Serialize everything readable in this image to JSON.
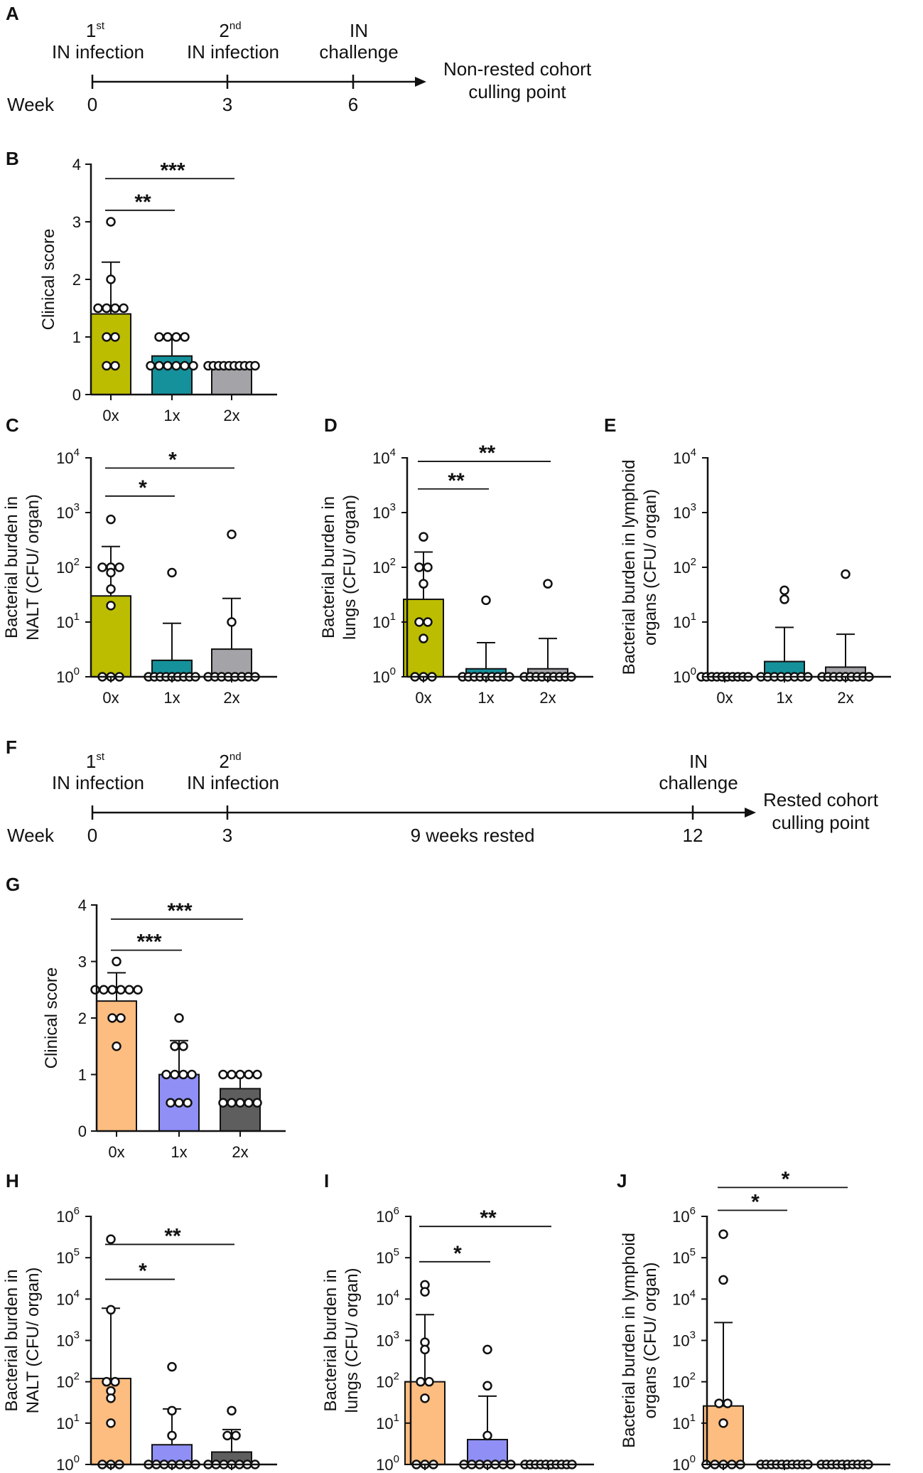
{
  "colors": {
    "olive": "#bcbd00",
    "teal": "#14919b",
    "gray": "#a3a3a8",
    "orange": "#fdbd80",
    "lavender": "#8f8ff5",
    "dark": "#5e5e5e"
  },
  "timelines": [
    {
      "panel": "A",
      "week_label": "Week",
      "events": [
        {
          "num": "1",
          "sup": "st",
          "label": "IN infection",
          "week": "0"
        },
        {
          "num": "2",
          "sup": "nd",
          "label": "IN infection",
          "week": "3"
        },
        {
          "num": "",
          "sup": "",
          "label": "IN",
          "label2": "challenge",
          "week": "6"
        }
      ],
      "end_label": [
        "Non-rested cohort",
        "culling point"
      ]
    },
    {
      "panel": "F",
      "week_label": "Week",
      "events": [
        {
          "num": "1",
          "sup": "st",
          "label": "IN infection",
          "week": "0"
        },
        {
          "num": "2",
          "sup": "nd",
          "label": "IN infection",
          "week": "3"
        },
        {
          "num": "",
          "sup": "",
          "label": "IN",
          "label2": "challenge",
          "week": "12"
        }
      ],
      "mid_label": "9 weeks rested",
      "end_label": [
        "Rested cohort",
        "culling point"
      ]
    }
  ],
  "chart_data": [
    {
      "panel": "B",
      "type": "bar",
      "scale": "linear",
      "ylabel": [
        "Clinical score"
      ],
      "ylim": [
        0,
        4
      ],
      "yticks": [
        "0",
        "1",
        "2",
        "3",
        "4"
      ],
      "categories": [
        "0x",
        "1x",
        "2x"
      ],
      "values": [
        1.4,
        0.67,
        0.5
      ],
      "errors": [
        2.3,
        1.0,
        0.5
      ],
      "colors": [
        "olive",
        "teal",
        "gray"
      ],
      "points": [
        [
          3,
          2,
          1.5,
          1.5,
          1.5,
          1.5,
          1,
          1,
          0.5,
          0.5
        ],
        [
          1,
          1,
          1,
          1,
          0.5,
          0.5,
          0.5,
          0.5,
          0.5,
          0.5
        ],
        [
          0.5,
          0.5,
          0.5,
          0.5,
          0.5,
          0.5,
          0.5,
          0.5,
          0.5,
          0.5
        ]
      ],
      "brackets": [
        {
          "from": 0,
          "to": 1,
          "y": 3.2,
          "label": "**"
        },
        {
          "from": 0,
          "to": 2,
          "y": 3.75,
          "label": "***"
        }
      ]
    },
    {
      "panel": "C",
      "type": "bar",
      "scale": "log",
      "ylabel": [
        "Bacterial burden in",
        "NALT (CFU/ organ)"
      ],
      "ylim_exp": [
        0,
        4
      ],
      "yticks": [
        {
          "base": "10",
          "exp": "0"
        },
        {
          "base": "10",
          "exp": "1"
        },
        {
          "base": "10",
          "exp": "2"
        },
        {
          "base": "10",
          "exp": "3"
        },
        {
          "base": "10",
          "exp": "4"
        }
      ],
      "categories": [
        "0x",
        "1x",
        "2x"
      ],
      "values": [
        30,
        2,
        3.2
      ],
      "errors": [
        240,
        9.5,
        27
      ],
      "colors": [
        "olive",
        "teal",
        "gray"
      ],
      "points": [
        [
          750,
          100,
          100,
          100,
          80,
          40,
          20,
          1,
          1,
          1
        ],
        [
          80,
          1,
          1,
          1,
          1,
          1,
          1,
          1,
          1,
          1
        ],
        [
          400,
          10,
          1,
          1,
          1,
          1,
          1,
          1,
          1,
          1
        ]
      ],
      "brackets": [
        {
          "from": 0,
          "to": 1,
          "y": 2000,
          "label": "*"
        },
        {
          "from": 0,
          "to": 2,
          "y": 6500,
          "label": "*"
        }
      ]
    },
    {
      "panel": "D",
      "type": "bar",
      "scale": "log",
      "ylabel": [
        "Bacterial burden in",
        "lungs (CFU/ organ)"
      ],
      "ylim_exp": [
        0,
        4
      ],
      "yticks": [
        {
          "base": "10",
          "exp": "0"
        },
        {
          "base": "10",
          "exp": "1"
        },
        {
          "base": "10",
          "exp": "2"
        },
        {
          "base": "10",
          "exp": "3"
        },
        {
          "base": "10",
          "exp": "4"
        }
      ],
      "categories": [
        "0x",
        "1x",
        "2x"
      ],
      "values": [
        26,
        1.4,
        1.4
      ],
      "errors": [
        190,
        4.2,
        5
      ],
      "colors": [
        "olive",
        "teal",
        "gray"
      ],
      "points": [
        [
          360,
          100,
          100,
          50,
          10,
          10,
          5,
          1,
          1,
          1
        ],
        [
          25,
          1,
          1,
          1,
          1,
          1,
          1,
          1,
          1,
          1
        ],
        [
          50,
          1,
          1,
          1,
          1,
          1,
          1,
          1,
          1,
          1
        ]
      ],
      "brackets": [
        {
          "from": 0,
          "to": 1,
          "y": 2700,
          "label": "**"
        },
        {
          "from": 0,
          "to": 2,
          "y": 8600,
          "label": "**"
        }
      ]
    },
    {
      "panel": "E",
      "type": "bar",
      "scale": "log",
      "ylabel": [
        "Bacterial burden in lymphoid",
        "organs (CFU/ organ)"
      ],
      "ylim_exp": [
        0,
        4
      ],
      "yticks": [
        {
          "base": "10",
          "exp": "0"
        },
        {
          "base": "10",
          "exp": "1"
        },
        {
          "base": "10",
          "exp": "2"
        },
        {
          "base": "10",
          "exp": "3"
        },
        {
          "base": "10",
          "exp": "4"
        }
      ],
      "categories": [
        "0x",
        "1x",
        "2x"
      ],
      "values": [
        1,
        1.9,
        1.5
      ],
      "errors": [
        1,
        8,
        6
      ],
      "colors": [
        "olive",
        "teal",
        "gray"
      ],
      "points": [
        [
          1,
          1,
          1,
          1,
          1,
          1,
          1,
          1,
          1,
          1
        ],
        [
          38,
          26,
          1,
          1,
          1,
          1,
          1,
          1,
          1,
          1
        ],
        [
          75,
          1,
          1,
          1,
          1,
          1,
          1,
          1,
          1,
          1
        ]
      ],
      "brackets": []
    },
    {
      "panel": "G",
      "type": "bar",
      "scale": "linear",
      "ylabel": [
        "Clinical score"
      ],
      "ylim": [
        0,
        4
      ],
      "yticks": [
        "0",
        "1",
        "2",
        "3",
        "4"
      ],
      "categories": [
        "0x",
        "1x",
        "2x"
      ],
      "values": [
        2.3,
        1.0,
        0.75
      ],
      "errors": [
        2.8,
        1.6,
        1.0
      ],
      "colors": [
        "orange",
        "lavender",
        "dark"
      ],
      "points": [
        [
          3,
          2.5,
          2.5,
          2.5,
          2.5,
          2.5,
          2.5,
          2,
          2,
          1.5
        ],
        [
          2,
          1.5,
          1.5,
          1,
          1,
          1,
          1,
          0.5,
          0.5,
          0.5
        ],
        [
          1,
          1,
          1,
          1,
          1,
          0.5,
          0.5,
          0.5,
          0.5,
          0.5
        ]
      ],
      "brackets": [
        {
          "from": 0,
          "to": 1,
          "y": 3.2,
          "label": "***"
        },
        {
          "from": 0,
          "to": 2,
          "y": 3.75,
          "label": "***"
        }
      ]
    },
    {
      "panel": "H",
      "type": "bar",
      "scale": "log",
      "ylabel": [
        "Bacterial burden in",
        "NALT (CFU/ organ)"
      ],
      "ylim_exp": [
        0,
        6
      ],
      "yticks": [
        {
          "base": "10",
          "exp": "0"
        },
        {
          "base": "10",
          "exp": "1"
        },
        {
          "base": "10",
          "exp": "2"
        },
        {
          "base": "10",
          "exp": "3"
        },
        {
          "base": "10",
          "exp": "4"
        },
        {
          "base": "10",
          "exp": "5"
        },
        {
          "base": "10",
          "exp": "6"
        }
      ],
      "categories": [
        "0x",
        "1x",
        "2x"
      ],
      "values": [
        120,
        3,
        2
      ],
      "errors": [
        6000,
        22,
        7
      ],
      "colors": [
        "orange",
        "lavender",
        "dark"
      ],
      "points": [
        [
          280000,
          5500,
          100,
          100,
          60,
          40,
          10,
          1,
          1,
          1
        ],
        [
          230,
          20,
          5,
          1,
          1,
          1,
          1,
          1,
          1,
          1
        ],
        [
          20,
          5,
          5,
          1,
          1,
          1,
          1,
          1,
          1,
          1
        ]
      ],
      "brackets": [
        {
          "from": 0,
          "to": 1,
          "y": 30000,
          "label": "*"
        },
        {
          "from": 0,
          "to": 2,
          "y": 210000,
          "label": "**"
        }
      ]
    },
    {
      "panel": "I",
      "type": "bar",
      "scale": "log",
      "ylabel": [
        "Bacterial burden in",
        "lungs (CFU/ organ)"
      ],
      "ylim_exp": [
        0,
        6
      ],
      "yticks": [
        {
          "base": "10",
          "exp": "0"
        },
        {
          "base": "10",
          "exp": "1"
        },
        {
          "base": "10",
          "exp": "2"
        },
        {
          "base": "10",
          "exp": "3"
        },
        {
          "base": "10",
          "exp": "4"
        },
        {
          "base": "10",
          "exp": "5"
        },
        {
          "base": "10",
          "exp": "6"
        }
      ],
      "categories": [
        "0x",
        "1x",
        "2x"
      ],
      "values": [
        100,
        4,
        1
      ],
      "errors": [
        4200,
        45,
        1
      ],
      "colors": [
        "orange",
        "lavender",
        "dark"
      ],
      "points": [
        [
          22000,
          15000,
          900,
          600,
          100,
          100,
          40,
          1,
          1,
          1
        ],
        [
          600,
          80,
          5,
          1,
          1,
          1,
          1,
          1,
          1,
          1
        ],
        [
          1,
          1,
          1,
          1,
          1,
          1,
          1,
          1,
          1,
          1
        ]
      ],
      "brackets": [
        {
          "from": 0,
          "to": 1,
          "y": 80000,
          "label": "*"
        },
        {
          "from": 0,
          "to": 2,
          "y": 570000,
          "label": "**"
        }
      ]
    },
    {
      "panel": "J",
      "type": "bar",
      "scale": "log",
      "ylabel": [
        "Bacterial burden in lymphoid",
        "organs (CFU/ organ)"
      ],
      "ylim_exp": [
        0,
        6
      ],
      "yticks": [
        {
          "base": "10",
          "exp": "0"
        },
        {
          "base": "10",
          "exp": "1"
        },
        {
          "base": "10",
          "exp": "2"
        },
        {
          "base": "10",
          "exp": "3"
        },
        {
          "base": "10",
          "exp": "4"
        },
        {
          "base": "10",
          "exp": "5"
        },
        {
          "base": "10",
          "exp": "6"
        }
      ],
      "categories": [
        "0x",
        "1x",
        "2x"
      ],
      "values": [
        26,
        1,
        1
      ],
      "errors": [
        2700,
        1,
        1
      ],
      "colors": [
        "orange",
        "lavender",
        "dark"
      ],
      "points": [
        [
          370000,
          29000,
          30,
          30,
          10,
          1,
          1,
          1,
          1,
          1
        ],
        [
          1,
          1,
          1,
          1,
          1,
          1,
          1,
          1,
          1,
          1
        ],
        [
          1,
          1,
          1,
          1,
          1,
          1,
          1,
          1,
          1,
          1
        ]
      ],
      "brackets": [
        {
          "from": 0,
          "to": 1,
          "y": 1400000,
          "label": "*"
        },
        {
          "from": 0,
          "to": 2,
          "y": 5000000,
          "label": "*"
        }
      ]
    }
  ]
}
